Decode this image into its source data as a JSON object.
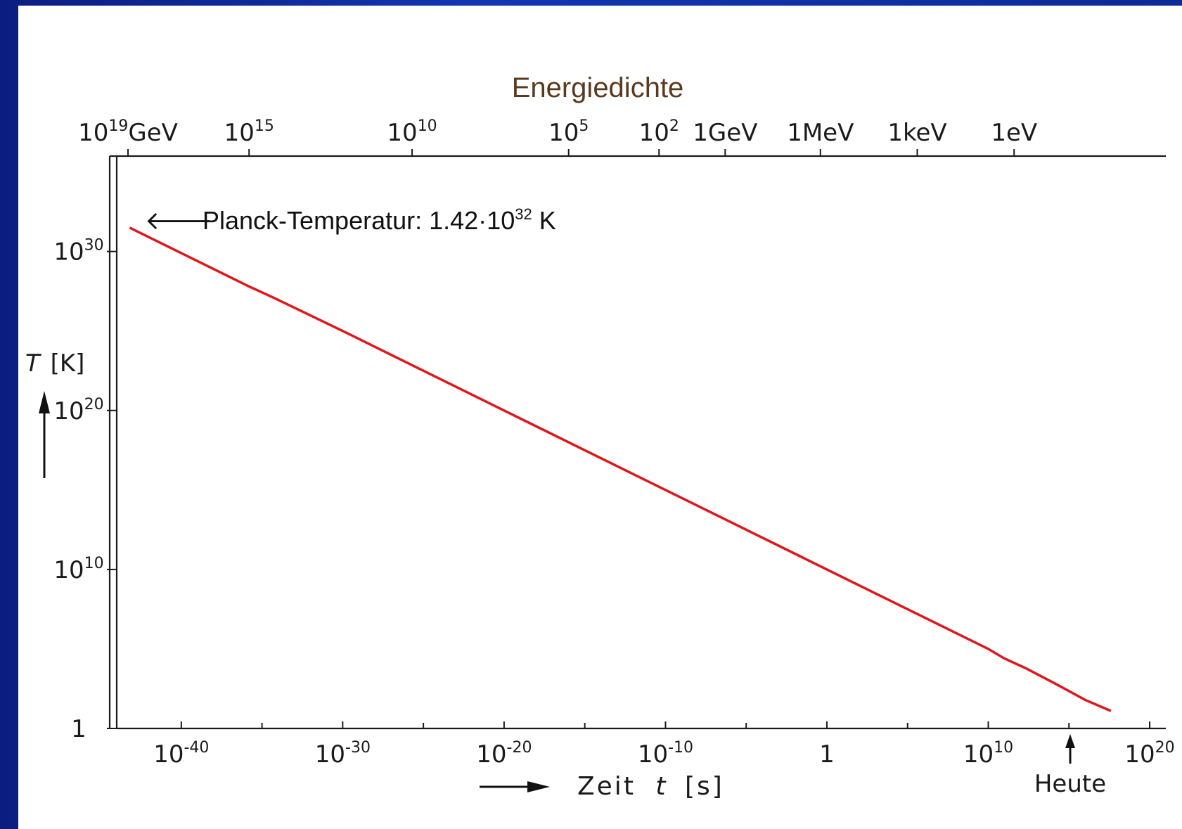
{
  "chart_data": {
    "type": "line",
    "title": "Energiedichte",
    "annotation": {
      "text": "Planck-Temperatur: 1.42·10",
      "exponent": "32",
      "unit": " K"
    },
    "xlabel": {
      "prefix": "Zeit",
      "var": "t",
      "unit": "[s]"
    },
    "ylabel": {
      "var": "T",
      "unit": "[K]"
    },
    "xscale": "log",
    "yscale": "log",
    "xlim_log10": [
      -44,
      21
    ],
    "ylim_log10": [
      0,
      36
    ],
    "x_ticks": [
      {
        "base": "10",
        "exp": "-40"
      },
      {
        "base": "10",
        "exp": "-30"
      },
      {
        "base": "10",
        "exp": "-20"
      },
      {
        "base": "10",
        "exp": "-10"
      },
      {
        "base": "1",
        "exp": ""
      },
      {
        "base": "10",
        "exp": "10"
      },
      {
        "base": "10",
        "exp": "20"
      }
    ],
    "x_tick_log10": [
      -40,
      -30,
      -20,
      -10,
      0,
      10,
      20
    ],
    "y_ticks": [
      {
        "base": "1",
        "exp": ""
      },
      {
        "base": "10",
        "exp": "10"
      },
      {
        "base": "10",
        "exp": "20"
      },
      {
        "base": "10",
        "exp": "30"
      }
    ],
    "y_tick_log10": [
      0,
      10,
      20,
      30
    ],
    "top_ticks": [
      {
        "base": "10",
        "exp": "19",
        "unit": "GeV"
      },
      {
        "base": "10",
        "exp": "15",
        "unit": ""
      },
      {
        "base": "10",
        "exp": "10",
        "unit": ""
      },
      {
        "base": "10",
        "exp": "5",
        "unit": ""
      },
      {
        "base": "10",
        "exp": "2",
        "unit": ""
      },
      {
        "base": "1GeV",
        "exp": "",
        "unit": ""
      },
      {
        "base": "1MeV",
        "exp": "",
        "unit": ""
      },
      {
        "base": "1keV",
        "exp": "",
        "unit": ""
      },
      {
        "base": "1eV",
        "exp": "",
        "unit": ""
      }
    ],
    "top_tick_time_log10": [
      -43.3,
      -35.8,
      -25.7,
      -16,
      -10.4,
      -6.3,
      -0.4,
      5.6,
      11.6
    ],
    "today_marker": {
      "label": "Heute",
      "x_log10": 17.7
    },
    "series": [
      {
        "color": "#e0161a",
        "x_log10": [
          -43.2,
          -35.8,
          -34.3,
          -30,
          -20,
          -10,
          0,
          10,
          11,
          12.3,
          14,
          16,
          17.6
        ],
        "y_log10": [
          31.5,
          27.8,
          27.1,
          25.0,
          20.0,
          15.0,
          10.0,
          5.0,
          4.4,
          3.8,
          2.9,
          1.8,
          1.1
        ]
      }
    ]
  }
}
